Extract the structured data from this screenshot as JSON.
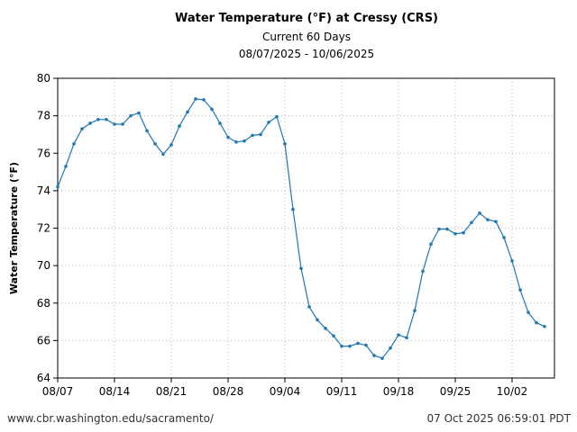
{
  "header": {
    "title": "Water Temperature (°F) at Cressy (CRS)",
    "subtitle": "Current 60 Days",
    "date_range": "08/07/2025 - 10/06/2025"
  },
  "footer": {
    "source": "www.cbr.washington.edu/sacramento/",
    "generated": "07 Oct 2025 06:59:01 PDT"
  },
  "colors": {
    "series": "#1f77b4",
    "grid": "#bbbbbb"
  },
  "chart_data": {
    "type": "line",
    "title": "Water Temperature (°F) at Cressy (CRS)",
    "subtitle": "Current 60 Days",
    "ylabel": "Water Temperature (°F)",
    "xlabel": "",
    "xlim": [
      "08/07/2025",
      "10/06/2025"
    ],
    "ylim": [
      64,
      80
    ],
    "yticks": [
      64,
      66,
      68,
      70,
      72,
      74,
      76,
      78,
      80
    ],
    "xtick_labels": [
      "08/07",
      "08/14",
      "08/21",
      "08/28",
      "09/04",
      "09/11",
      "09/18",
      "09/25",
      "10/02"
    ],
    "grid": true,
    "legend": "none",
    "series": [
      {
        "x": [
          "08/07",
          "08/08",
          "08/09",
          "08/10",
          "08/11",
          "08/12",
          "08/13",
          "08/14",
          "08/15",
          "08/16",
          "08/17",
          "08/18",
          "08/19",
          "08/20",
          "08/21",
          "08/22",
          "08/23",
          "08/24",
          "08/25",
          "08/26",
          "08/27",
          "08/28",
          "08/29",
          "08/30",
          "08/31",
          "09/01",
          "09/02",
          "09/03",
          "09/04",
          "09/05",
          "09/06",
          "09/07",
          "09/08",
          "09/09",
          "09/10",
          "09/11",
          "09/12",
          "09/13",
          "09/14",
          "09/15",
          "09/16",
          "09/17",
          "09/18",
          "09/19",
          "09/20",
          "09/21",
          "09/22",
          "09/23",
          "09/24",
          "09/25",
          "09/26",
          "09/27",
          "09/28",
          "09/29",
          "09/30",
          "10/01",
          "10/02",
          "10/03",
          "10/04",
          "10/05",
          "10/06"
        ],
        "values": [
          74.2,
          75.3,
          76.5,
          77.3,
          77.6,
          77.8,
          77.8,
          77.55,
          77.55,
          78.0,
          78.15,
          77.2,
          76.5,
          75.95,
          76.45,
          77.45,
          78.2,
          78.9,
          78.85,
          78.35,
          77.6,
          76.85,
          76.6,
          76.65,
          76.95,
          77.0,
          77.65,
          77.95,
          76.5,
          73.0,
          69.85,
          67.8,
          67.1,
          66.65,
          66.25,
          65.7,
          65.7,
          65.85,
          65.75,
          65.2,
          65.05,
          65.6,
          66.3,
          66.15,
          67.6,
          69.7,
          71.15,
          71.95,
          71.95,
          71.7,
          71.75,
          72.3,
          72.8,
          72.45,
          72.35,
          71.5,
          70.25,
          68.7,
          67.5,
          66.95,
          66.75
        ]
      }
    ]
  }
}
